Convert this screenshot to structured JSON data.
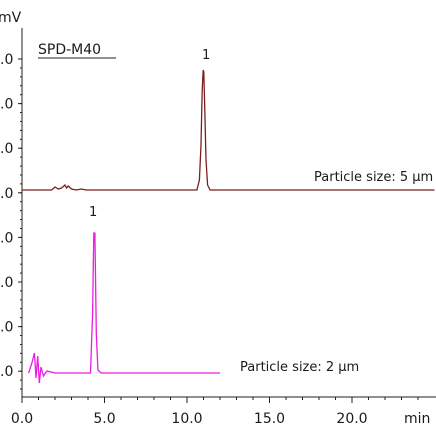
{
  "chart_data": {
    "type": "line",
    "title": "",
    "instrument_label": "SPD-M40",
    "ylabel": "mV",
    "xlabel": "min",
    "xlim": [
      0,
      25
    ],
    "x_ticks": [
      {
        "value": 0,
        "label": "0.0"
      },
      {
        "value": 5,
        "label": "5.0"
      },
      {
        "value": 10,
        "label": "10.0"
      },
      {
        "value": 15,
        "label": "15.0"
      },
      {
        "value": 20,
        "label": "20.0"
      }
    ],
    "y_tick_labels": [
      ".0",
      ".0",
      ".0",
      ".0",
      ".0",
      ".0",
      ".0",
      ".0"
    ],
    "grid": false,
    "series": [
      {
        "name": "Particle size: 5 µm",
        "color": "#7a1f1f",
        "baseline_retention_span": [
          0,
          25
        ],
        "x": [
          0.0,
          1.8,
          2.0,
          2.2,
          2.4,
          2.6,
          2.7,
          2.8,
          3.0,
          3.3,
          3.6,
          3.9,
          4.2,
          6.0,
          10.6,
          10.75,
          10.85,
          10.92,
          10.98,
          11.02,
          11.08,
          11.15,
          11.25,
          11.4,
          25.0
        ],
        "y": [
          0,
          0,
          3,
          1,
          2,
          5,
          2,
          4,
          1,
          0,
          1,
          0,
          0,
          0,
          0,
          10,
          45,
          100,
          120,
          118,
          80,
          30,
          5,
          0,
          0
        ],
        "peak_label": "1"
      },
      {
        "name": "Particle size: 2 µm",
        "color": "#e91ee0",
        "baseline_retention_span": [
          0.4,
          12
        ],
        "x": [
          0.4,
          0.6,
          0.75,
          0.85,
          0.95,
          1.05,
          1.15,
          1.3,
          1.5,
          2.0,
          3.0,
          4.15,
          4.28,
          4.35,
          4.42,
          4.5,
          4.6,
          4.8,
          6.0,
          12.0
        ],
        "y": [
          0,
          10,
          20,
          -5,
          17,
          -10,
          6,
          -3,
          2,
          0,
          0,
          0,
          60,
          140,
          140,
          40,
          3,
          0,
          0,
          0
        ],
        "peak_label": "1"
      }
    ],
    "annotations": {
      "series_labels": [
        "Particle size: 5 µm",
        "Particle size: 2 µm"
      ]
    }
  }
}
